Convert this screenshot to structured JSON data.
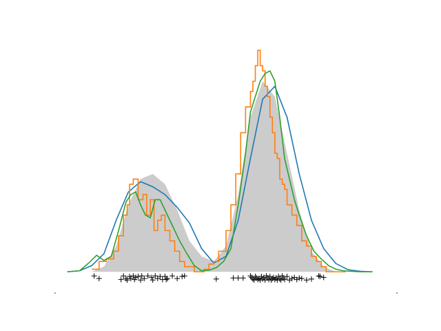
{
  "chart_data": {
    "type": "area",
    "title": "",
    "xlabel": "",
    "ylabel": "",
    "xlim": [
      -4,
      10
    ],
    "ylim": [
      -0.04,
      0.45
    ],
    "grid": false,
    "legend": "none",
    "colors": {
      "true_density": "#cccccc",
      "kde_broad": "#1f77b4",
      "histogram_step": "#ff7f0e",
      "kde_narrow": "#2ca02c",
      "samples": "#000000"
    },
    "series": [
      {
        "kind": "filled-density",
        "x": [
          -2.5,
          -2.0,
          -1.5,
          -1.0,
          -0.5,
          0.0,
          0.5,
          1.0,
          1.5,
          2.0,
          2.5,
          3.0,
          3.5,
          4.0,
          4.5,
          5.0,
          5.5,
          6.0,
          6.5,
          7.0,
          7.5,
          8.0,
          8.5
        ],
        "y": [
          0.0,
          0.01,
          0.05,
          0.13,
          0.18,
          0.19,
          0.17,
          0.12,
          0.06,
          0.03,
          0.02,
          0.05,
          0.15,
          0.3,
          0.37,
          0.34,
          0.23,
          0.12,
          0.04,
          0.01,
          0.0,
          0.0,
          0.0
        ]
      },
      {
        "kind": "line",
        "x": [
          -3.5,
          -3.0,
          -2.5,
          -2.0,
          -1.5,
          -1.0,
          -0.5,
          0.0,
          0.5,
          1.0,
          1.5,
          2.0,
          2.5,
          3.0,
          3.5,
          4.0,
          4.5,
          5.0,
          5.5,
          6.0,
          6.5,
          7.0,
          7.5,
          8.0,
          8.5,
          9.0
        ],
        "y": [
          0.0,
          0.002,
          0.012,
          0.035,
          0.1,
          0.155,
          0.175,
          0.165,
          0.15,
          0.125,
          0.095,
          0.045,
          0.017,
          0.03,
          0.1,
          0.22,
          0.335,
          0.36,
          0.3,
          0.19,
          0.1,
          0.045,
          0.016,
          0.004,
          0.001,
          0.0
        ]
      },
      {
        "kind": "step",
        "x": [
          -2.5,
          -2.2,
          -1.9,
          -1.6,
          -1.4,
          -1.2,
          -1.05,
          -0.95,
          -0.8,
          -0.6,
          -0.4,
          -0.25,
          -0.1,
          0.05,
          0.2,
          0.35,
          0.5,
          0.7,
          0.9,
          1.1,
          1.3,
          1.5,
          1.7,
          1.9,
          2.1,
          2.3,
          2.5,
          2.7,
          3.0,
          3.2,
          3.4,
          3.6,
          3.8,
          4.0,
          4.1,
          4.2,
          4.3,
          4.4,
          4.5,
          4.6,
          4.7,
          4.8,
          4.9,
          5.0,
          5.1,
          5.2,
          5.3,
          5.4,
          5.5,
          5.7,
          5.9,
          6.1,
          6.3,
          6.5,
          6.7,
          6.9,
          7.1,
          7.3,
          7.5,
          7.7,
          7.9
        ],
        "y": [
          0.005,
          0.02,
          0.025,
          0.04,
          0.07,
          0.11,
          0.13,
          0.17,
          0.18,
          0.14,
          0.15,
          0.11,
          0.14,
          0.08,
          0.1,
          0.11,
          0.08,
          0.06,
          0.04,
          0.02,
          0.01,
          0.01,
          0.0,
          0.0,
          0.005,
          0.015,
          0.02,
          0.04,
          0.08,
          0.13,
          0.19,
          0.27,
          0.32,
          0.35,
          0.37,
          0.4,
          0.43,
          0.4,
          0.39,
          0.36,
          0.34,
          0.3,
          0.27,
          0.23,
          0.22,
          0.18,
          0.17,
          0.16,
          0.13,
          0.11,
          0.09,
          0.06,
          0.05,
          0.03,
          0.02,
          0.01,
          0.0,
          0.0,
          0.0,
          0.0,
          0.0
        ]
      },
      {
        "kind": "line",
        "x": [
          -3.5,
          -3.0,
          -2.6,
          -2.3,
          -2.0,
          -1.7,
          -1.4,
          -1.1,
          -0.9,
          -0.7,
          -0.5,
          -0.3,
          -0.1,
          0.1,
          0.3,
          0.5,
          0.8,
          1.1,
          1.4,
          1.7,
          2.0,
          2.3,
          2.6,
          2.9,
          3.2,
          3.5,
          3.8,
          4.0,
          4.2,
          4.4,
          4.6,
          4.8,
          5.0,
          5.2,
          5.4,
          5.6,
          5.8,
          6.0,
          6.3,
          6.6,
          6.9,
          7.2,
          7.5,
          7.8,
          8.1,
          8.5,
          9.0
        ],
        "y": [
          0.0,
          0.002,
          0.018,
          0.032,
          0.022,
          0.03,
          0.08,
          0.135,
          0.15,
          0.155,
          0.13,
          0.11,
          0.105,
          0.14,
          0.14,
          0.12,
          0.09,
          0.06,
          0.035,
          0.012,
          0.002,
          0.003,
          0.008,
          0.02,
          0.045,
          0.13,
          0.23,
          0.31,
          0.34,
          0.37,
          0.385,
          0.39,
          0.37,
          0.3,
          0.22,
          0.18,
          0.14,
          0.11,
          0.07,
          0.04,
          0.025,
          0.012,
          0.005,
          0.002,
          0.001,
          0.0,
          0.0
        ]
      }
    ],
    "samples": [
      -2.4,
      -2.2,
      -1.3,
      -1.2,
      -1.1,
      -1.05,
      -0.95,
      -0.9,
      -0.8,
      -0.75,
      -0.7,
      -0.6,
      -0.5,
      -0.45,
      -0.35,
      -0.2,
      -0.05,
      0.0,
      0.1,
      0.2,
      0.3,
      0.4,
      0.5,
      0.55,
      0.6,
      0.8,
      1.0,
      1.2,
      1.3,
      2.6,
      3.3,
      3.5,
      3.7,
      4.0,
      4.05,
      4.1,
      4.15,
      4.2,
      4.25,
      4.3,
      4.35,
      4.4,
      4.45,
      4.5,
      4.55,
      4.6,
      4.65,
      4.7,
      4.75,
      4.8,
      4.85,
      4.9,
      4.95,
      5.0,
      5.05,
      5.1,
      5.15,
      5.2,
      5.25,
      5.3,
      5.35,
      5.4,
      5.5,
      5.6,
      5.7,
      5.8,
      5.9,
      6.0,
      6.1,
      6.3,
      6.5,
      6.8,
      6.85,
      7.0
    ],
    "sample_levels": [
      -0.008,
      -0.013,
      -0.015,
      -0.008,
      -0.013,
      -0.016,
      -0.009,
      -0.013,
      -0.008,
      -0.015,
      -0.011,
      -0.009,
      -0.016,
      -0.008,
      -0.013,
      -0.008,
      -0.011,
      -0.016,
      -0.008,
      -0.013,
      -0.009,
      -0.015,
      -0.009,
      -0.015,
      -0.013,
      -0.008,
      -0.013,
      -0.009,
      -0.008,
      -0.014,
      -0.012,
      -0.012,
      -0.012,
      -0.008,
      -0.011,
      -0.014,
      -0.016,
      -0.009,
      -0.012,
      -0.015,
      -0.013,
      -0.016,
      -0.009,
      -0.014,
      -0.011,
      -0.016,
      -0.008,
      -0.012,
      -0.015,
      -0.009,
      -0.016,
      -0.013,
      -0.011,
      -0.015,
      -0.012,
      -0.016,
      -0.009,
      -0.014,
      -0.016,
      -0.008,
      -0.012,
      -0.015,
      -0.009,
      -0.016,
      -0.013,
      -0.011,
      -0.015,
      -0.012,
      -0.013,
      -0.016,
      -0.014,
      -0.008,
      -0.009,
      -0.011
    ],
    "x_ticks": [
      -4,
      10
    ]
  }
}
